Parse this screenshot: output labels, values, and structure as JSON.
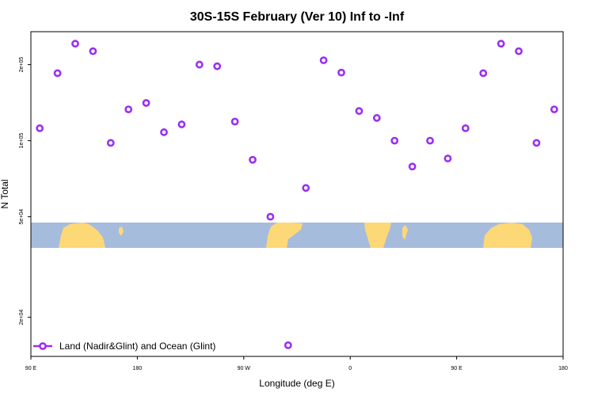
{
  "chart_data": {
    "type": "scatter",
    "title": "30S-15S February (Ver 10)   Inf to -Inf",
    "xlabel": "Longitude (deg E)",
    "ylabel": "N Total",
    "x_ticks": [
      {
        "value": 90,
        "label": "90 E"
      },
      {
        "value": 180,
        "label": "180"
      },
      {
        "value": 270,
        "label": "90 W"
      },
      {
        "value": 360,
        "label": "0"
      },
      {
        "value": 450,
        "label": "90 E"
      },
      {
        "value": 540,
        "label": "180"
      }
    ],
    "y_ticks": [
      {
        "value": 20000,
        "label": "2e+04"
      },
      {
        "value": 50000,
        "label": "5e+04"
      },
      {
        "value": 100000,
        "label": "1e+05"
      },
      {
        "value": 200000,
        "label": "2e+05"
      }
    ],
    "y_scale": "log",
    "xlim": [
      90,
      540
    ],
    "ylim": [
      14000,
      270000
    ],
    "legend": {
      "label": "Land (Nadir&Glint) and Ocean (Glint)",
      "position": "bottom-left"
    },
    "series": [
      {
        "color": "#9b30f0",
        "x": [
          97.5,
          112.5,
          127.5,
          142.5,
          157.5,
          172.5,
          187.5,
          202.5,
          217.5,
          232.5,
          247.5,
          262.5,
          277.5,
          292.5,
          307.5,
          322.5,
          337.5,
          352.5,
          367.5,
          382.5,
          397.5,
          412.5,
          427.5,
          442.5,
          457.5,
          472.5,
          487.5,
          502.5,
          517.5,
          532.5
        ],
        "y": [
          112000,
          185000,
          242000,
          226000,
          98000,
          133000,
          141000,
          108000,
          116000,
          200000,
          197000,
          119000,
          84000,
          50000,
          15500,
          65000,
          208000,
          186000,
          131000,
          123000,
          100000,
          79000,
          100000,
          85000,
          112000,
          185000,
          242000,
          226000,
          98000,
          133000
        ]
      }
    ]
  }
}
